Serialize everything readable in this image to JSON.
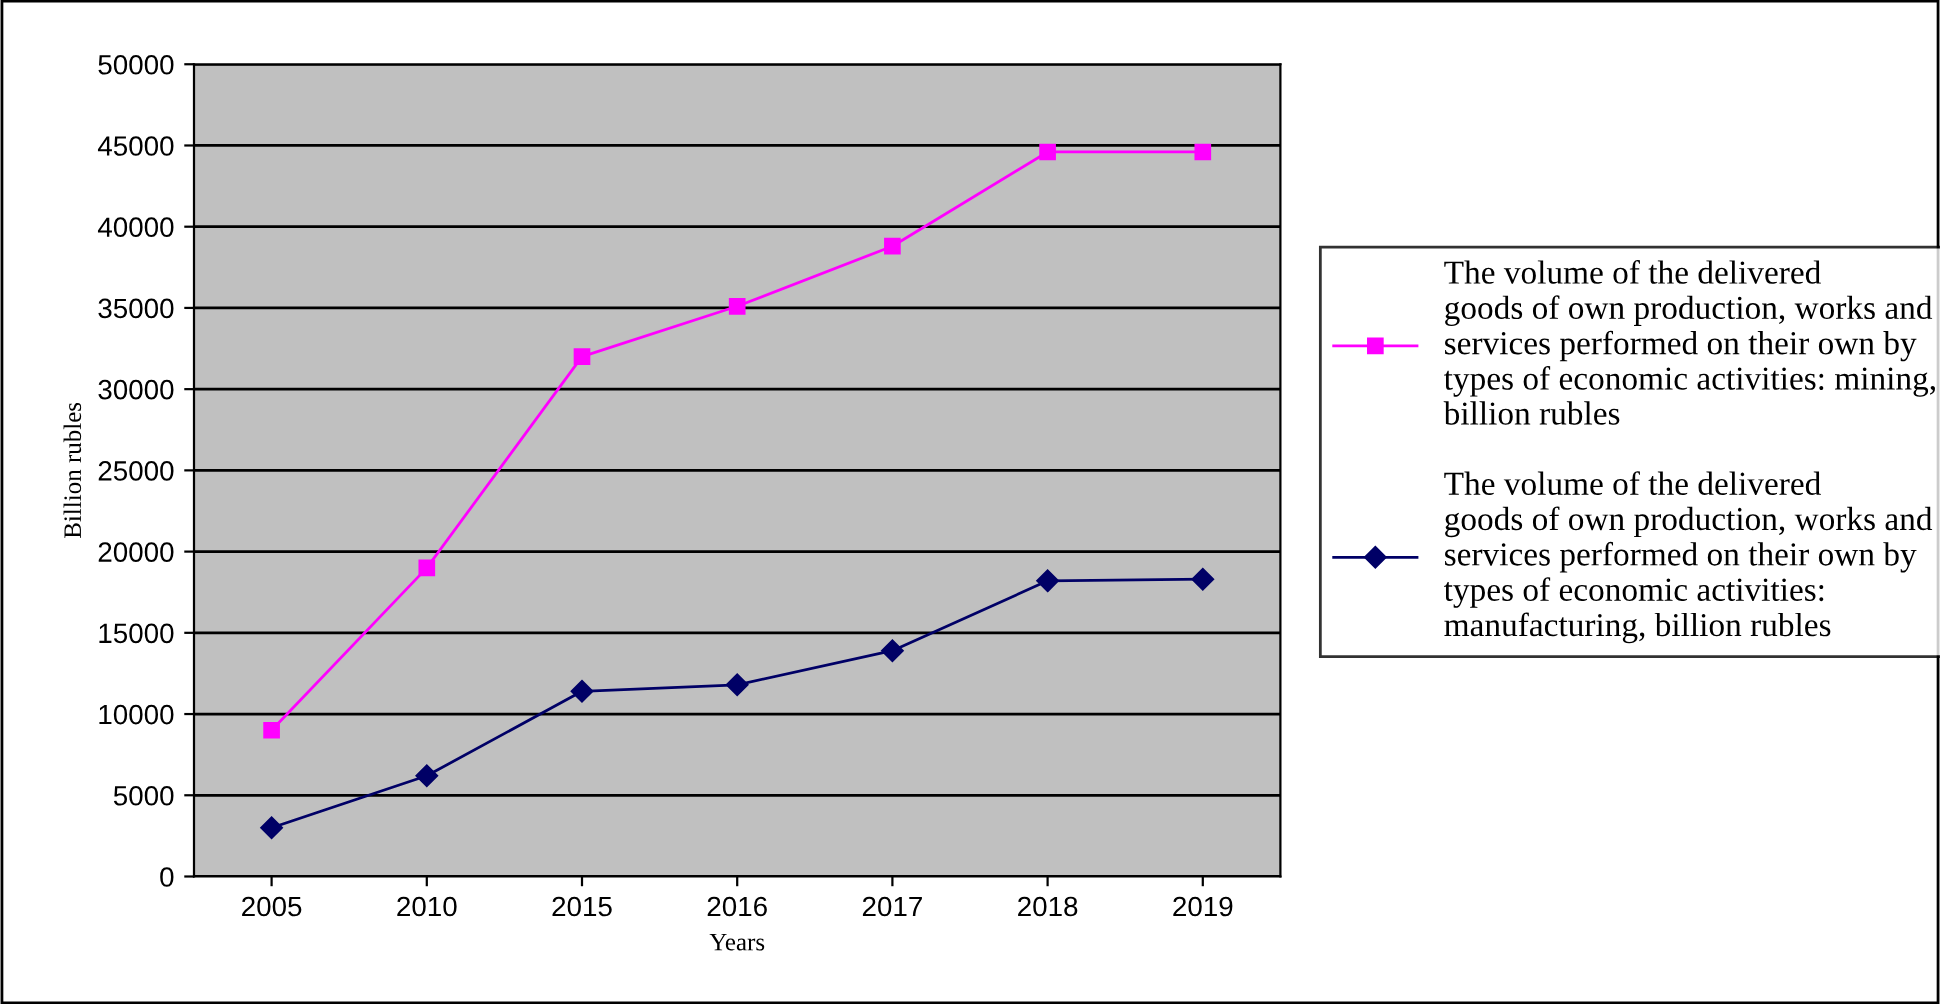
{
  "chart_data": {
    "type": "line",
    "xlabel": "Years",
    "ylabel": "Billion rubles",
    "categories": [
      "2005",
      "2010",
      "2015",
      "2016",
      "2017",
      "2018",
      "2019"
    ],
    "series": [
      {
        "name": "The volume of the delivered\ngoods of own production, works and\nservices performed on their own by\ntypes of economic activities: mining,\nbillion rubles",
        "color": "#ff00ff",
        "marker": "square",
        "values": [
          9000,
          19000,
          32000,
          35100,
          38800,
          44600,
          44600
        ]
      },
      {
        "name": "The volume of the delivered\ngoods of own production, works and\nservices performed on their own by\ntypes of economic activities:\nmanufacturing, billion rubles",
        "color": "#000066",
        "marker": "diamond",
        "values": [
          3000,
          6200,
          11400,
          11800,
          13900,
          18200,
          18300
        ]
      }
    ],
    "ylim": [
      0,
      50000
    ],
    "yticks": [
      0,
      5000,
      10000,
      15000,
      20000,
      25000,
      30000,
      35000,
      40000,
      45000,
      50000
    ],
    "grid": "y",
    "legend": "right"
  }
}
